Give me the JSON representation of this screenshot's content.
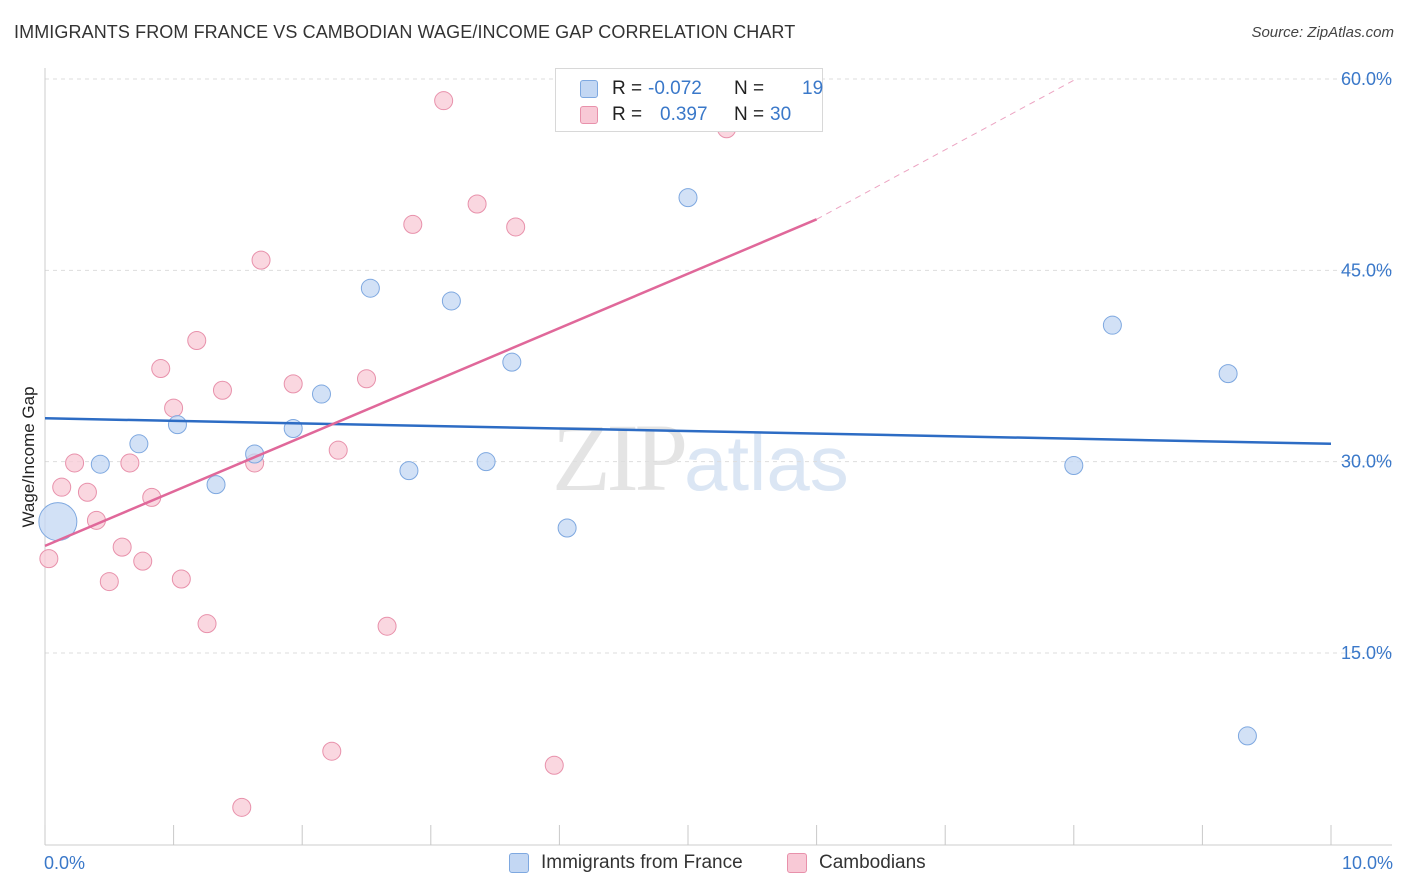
{
  "header": {
    "title": "IMMIGRANTS FROM FRANCE VS CAMBODIAN WAGE/INCOME GAP CORRELATION CHART",
    "source": "Source: ZipAtlas.com"
  },
  "watermark": {
    "zip": "ZIP",
    "atlas": "atlas"
  },
  "colors": {
    "blue_fill": "#c3d7f3",
    "blue_stroke": "#7ea8e0",
    "blue_line": "#2d6cc4",
    "pink_fill": "#f8c9d6",
    "pink_stroke": "#e891ab",
    "pink_line": "#e0689a",
    "tick_text": "#3a78c9",
    "grid": "#dddddd"
  },
  "legend": {
    "rows": [
      {
        "r_label": "R =",
        "r_value": "-0.072",
        "n_label": "N =",
        "n_value": "19"
      },
      {
        "r_label": "R =",
        "r_value": "0.397",
        "n_label": "N =",
        "n_value": "30"
      }
    ],
    "bottom": [
      "Immigrants from France",
      "Cambodians"
    ]
  },
  "chart_data": {
    "type": "scatter",
    "title": "IMMIGRANTS FROM FRANCE VS CAMBODIAN WAGE/INCOME GAP CORRELATION CHART",
    "xlabel": "",
    "ylabel": "Wage/Income Gap",
    "xlim": [
      0,
      10
    ],
    "ylim": [
      0,
      62
    ],
    "x_tick_labels": [
      "0.0%",
      "10.0%"
    ],
    "y_ticks": [
      15,
      30,
      45,
      60
    ],
    "y_tick_labels": [
      "15.0%",
      "30.0%",
      "45.0%",
      "60.0%"
    ],
    "grid": true,
    "series": [
      {
        "name": "Immigrants from France",
        "r": -0.072,
        "n": 19,
        "points": [
          {
            "x": 0.1,
            "y": 25.3,
            "big": true
          },
          {
            "x": 0.43,
            "y": 29.8
          },
          {
            "x": 0.73,
            "y": 31.4
          },
          {
            "x": 1.03,
            "y": 32.9
          },
          {
            "x": 1.33,
            "y": 28.2
          },
          {
            "x": 1.63,
            "y": 30.6
          },
          {
            "x": 1.93,
            "y": 32.6
          },
          {
            "x": 2.15,
            "y": 35.3
          },
          {
            "x": 2.53,
            "y": 43.6
          },
          {
            "x": 2.83,
            "y": 29.3
          },
          {
            "x": 3.16,
            "y": 42.6
          },
          {
            "x": 3.43,
            "y": 30.0
          },
          {
            "x": 3.63,
            "y": 37.8
          },
          {
            "x": 4.06,
            "y": 24.8
          },
          {
            "x": 5.0,
            "y": 50.7
          },
          {
            "x": 8.0,
            "y": 29.7
          },
          {
            "x": 8.3,
            "y": 40.7
          },
          {
            "x": 9.2,
            "y": 36.9
          },
          {
            "x": 9.35,
            "y": 8.5
          }
        ],
        "trend": {
          "x0": 0.0,
          "y0": 33.4,
          "x1": 10.0,
          "y1": 31.4
        }
      },
      {
        "name": "Cambodians",
        "r": 0.397,
        "n": 30,
        "points": [
          {
            "x": 0.03,
            "y": 22.4
          },
          {
            "x": 0.13,
            "y": 28.0
          },
          {
            "x": 0.23,
            "y": 29.9
          },
          {
            "x": 0.33,
            "y": 27.6
          },
          {
            "x": 0.4,
            "y": 25.4
          },
          {
            "x": 0.5,
            "y": 20.6
          },
          {
            "x": 0.6,
            "y": 23.3
          },
          {
            "x": 0.66,
            "y": 29.9
          },
          {
            "x": 0.76,
            "y": 22.2
          },
          {
            "x": 0.83,
            "y": 27.2
          },
          {
            "x": 0.9,
            "y": 37.3
          },
          {
            "x": 1.0,
            "y": 34.2
          },
          {
            "x": 1.06,
            "y": 20.8
          },
          {
            "x": 1.18,
            "y": 39.5
          },
          {
            "x": 1.26,
            "y": 17.3
          },
          {
            "x": 1.38,
            "y": 35.6
          },
          {
            "x": 1.53,
            "y": 2.9
          },
          {
            "x": 1.63,
            "y": 29.9
          },
          {
            "x": 1.68,
            "y": 45.8
          },
          {
            "x": 1.93,
            "y": 36.1
          },
          {
            "x": 2.23,
            "y": 7.3
          },
          {
            "x": 2.28,
            "y": 30.9
          },
          {
            "x": 2.5,
            "y": 36.5
          },
          {
            "x": 2.66,
            "y": 17.1
          },
          {
            "x": 2.86,
            "y": 48.6
          },
          {
            "x": 3.1,
            "y": 58.3
          },
          {
            "x": 3.36,
            "y": 50.2
          },
          {
            "x": 3.66,
            "y": 48.4
          },
          {
            "x": 3.96,
            "y": 6.2
          },
          {
            "x": 5.3,
            "y": 56.1
          }
        ],
        "trend": {
          "x0": 0.0,
          "y0": 23.4,
          "x1": 6.0,
          "y1": 49.0,
          "dash_x1": 8.0,
          "dash_y1": 59.9
        }
      }
    ]
  }
}
